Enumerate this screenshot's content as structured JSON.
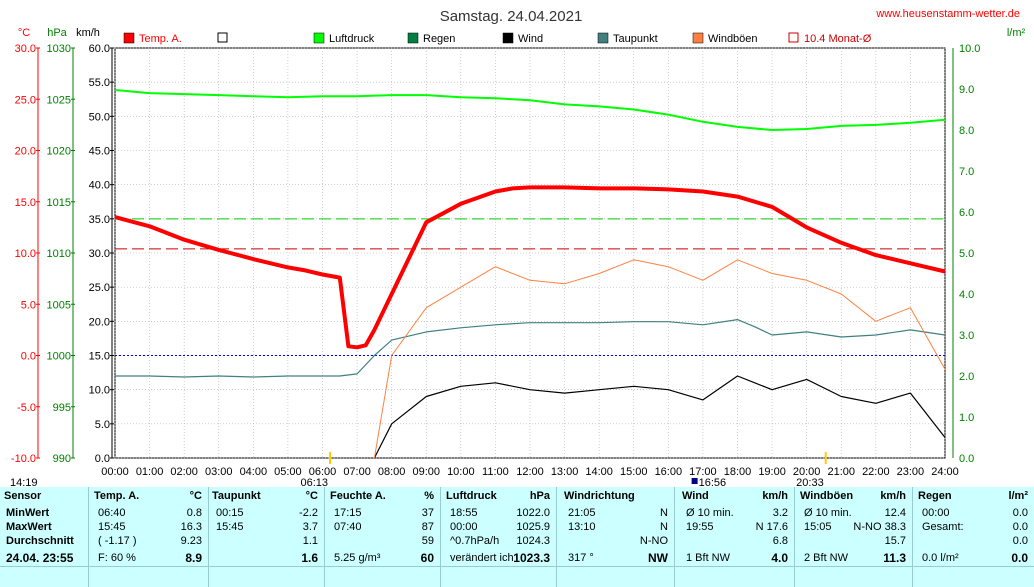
{
  "site": "www.heusenstamm-wetter.de",
  "chart_data": {
    "type": "line",
    "title": "Samstag. 24.04.2021",
    "x": [
      "00:00",
      "01:00",
      "02:00",
      "03:00",
      "04:00",
      "05:00",
      "06:00",
      "07:00",
      "08:00",
      "09:00",
      "10:00",
      "11:00",
      "12:00",
      "13:00",
      "14:00",
      "15:00",
      "16:00",
      "17:00",
      "18:00",
      "19:00",
      "20:00",
      "21:00",
      "22:00",
      "23:00",
      "24:00"
    ],
    "axes": {
      "temp": {
        "unit": "°C",
        "min": -10,
        "max": 30,
        "ticks": [
          "30.0",
          "25.0",
          "20.0",
          "15.0",
          "10.0",
          "5.0",
          "0.0",
          "-5.0",
          "-10.0"
        ],
        "color": "#ff0000"
      },
      "pressure": {
        "unit": "hPa",
        "min": 990,
        "max": 1030,
        "ticks": [
          "1030",
          "1025",
          "1020",
          "1015",
          "1010",
          "1005",
          "1000",
          "995",
          "990"
        ],
        "color": "#008000"
      },
      "wind": {
        "unit": "km/h",
        "min": 0,
        "max": 60,
        "ticks": [
          "60.0",
          "55.0",
          "50.0",
          "45.0",
          "40.0",
          "35.0",
          "30.0",
          "25.0",
          "20.0",
          "15.0",
          "10.0",
          "5.0",
          "0.0"
        ],
        "color": "#000000"
      },
      "rain": {
        "unit": "l/m²",
        "min": 0,
        "max": 10,
        "ticks": [
          "10.0",
          "9.0",
          "8.0",
          "7.0",
          "6.0",
          "5.0",
          "4.0",
          "3.0",
          "2.0",
          "1.0",
          "0.0"
        ],
        "color": "#008000"
      }
    },
    "legend": [
      {
        "name": "Temp. A.",
        "color": "#ff0000",
        "style": "fill"
      },
      {
        "name": "",
        "color": "#ffffff",
        "style": "box"
      },
      {
        "name": "Luftdruck",
        "color": "#00ff00",
        "style": "fill"
      },
      {
        "name": "Regen",
        "color": "#008040",
        "style": "fill"
      },
      {
        "name": "Wind",
        "color": "#000000",
        "style": "fill"
      },
      {
        "name": "Taupunkt",
        "color": "#408080",
        "style": "fill"
      },
      {
        "name": "Windböen",
        "color": "#ff8040",
        "style": "fill"
      },
      {
        "name": "10.4 Monat-Ø",
        "color": "#cc0000",
        "style": "box"
      }
    ],
    "series": [
      {
        "name": "Temp. A.",
        "axis": "temp",
        "color": "#ff0000",
        "points": [
          [
            0,
            13.5
          ],
          [
            1,
            12.6
          ],
          [
            2,
            11.3
          ],
          [
            3,
            10.3
          ],
          [
            4,
            9.4
          ],
          [
            5,
            8.6
          ],
          [
            5.5,
            8.3
          ],
          [
            6,
            7.9
          ],
          [
            6.5,
            7.6
          ],
          [
            6.75,
            0.9
          ],
          [
            7,
            0.8
          ],
          [
            7.25,
            1.0
          ],
          [
            7.5,
            2.5
          ],
          [
            8,
            6.0
          ],
          [
            8.5,
            9.5
          ],
          [
            9,
            13.0
          ],
          [
            10,
            14.8
          ],
          [
            11,
            16.0
          ],
          [
            11.5,
            16.3
          ],
          [
            12,
            16.4
          ],
          [
            13,
            16.4
          ],
          [
            14,
            16.3
          ],
          [
            15,
            16.3
          ],
          [
            16,
            16.2
          ],
          [
            17,
            16.0
          ],
          [
            18,
            15.5
          ],
          [
            19,
            14.5
          ],
          [
            20,
            12.5
          ],
          [
            21,
            11.0
          ],
          [
            22,
            9.8
          ],
          [
            23,
            9.0
          ],
          [
            24,
            8.2
          ]
        ]
      },
      {
        "name": "Taupunkt",
        "axis": "temp",
        "color": "#408080",
        "points": [
          [
            0,
            -2.0
          ],
          [
            1,
            -2.0
          ],
          [
            2,
            -2.1
          ],
          [
            3,
            -2.0
          ],
          [
            4,
            -2.1
          ],
          [
            5,
            -2.0
          ],
          [
            6,
            -2.0
          ],
          [
            6.5,
            -2.0
          ],
          [
            7,
            -1.8
          ],
          [
            7.5,
            0.0
          ],
          [
            8,
            1.5
          ],
          [
            9,
            2.3
          ],
          [
            10,
            2.7
          ],
          [
            11,
            3.0
          ],
          [
            12,
            3.2
          ],
          [
            13,
            3.2
          ],
          [
            14,
            3.2
          ],
          [
            15,
            3.3
          ],
          [
            16,
            3.3
          ],
          [
            17,
            3.0
          ],
          [
            18,
            3.5
          ],
          [
            18.5,
            2.8
          ],
          [
            19,
            2.0
          ],
          [
            20,
            2.3
          ],
          [
            21,
            1.8
          ],
          [
            22,
            2.0
          ],
          [
            23,
            2.5
          ],
          [
            24,
            2.0
          ]
        ]
      },
      {
        "name": "Luftdruck",
        "axis": "pressure",
        "color": "#00ff00",
        "points": [
          [
            0,
            1025.9
          ],
          [
            1,
            1025.6
          ],
          [
            2,
            1025.5
          ],
          [
            3,
            1025.4
          ],
          [
            4,
            1025.3
          ],
          [
            5,
            1025.2
          ],
          [
            6,
            1025.3
          ],
          [
            7,
            1025.3
          ],
          [
            8,
            1025.4
          ],
          [
            9,
            1025.4
          ],
          [
            10,
            1025.2
          ],
          [
            11,
            1025.1
          ],
          [
            12,
            1024.9
          ],
          [
            13,
            1024.5
          ],
          [
            14,
            1024.3
          ],
          [
            15,
            1024.0
          ],
          [
            16,
            1023.5
          ],
          [
            17,
            1022.8
          ],
          [
            18,
            1022.3
          ],
          [
            19,
            1022.0
          ],
          [
            20,
            1022.1
          ],
          [
            21,
            1022.4
          ],
          [
            22,
            1022.5
          ],
          [
            23,
            1022.7
          ],
          [
            24,
            1023.0
          ]
        ]
      },
      {
        "name": "Wind",
        "axis": "wind",
        "color": "#000000",
        "points": [
          [
            7.5,
            0.0
          ],
          [
            8,
            5.0
          ],
          [
            9,
            9.0
          ],
          [
            10,
            10.5
          ],
          [
            11,
            11.0
          ],
          [
            12,
            10.0
          ],
          [
            13,
            9.5
          ],
          [
            14,
            10.0
          ],
          [
            15,
            10.5
          ],
          [
            16,
            10.0
          ],
          [
            17,
            8.5
          ],
          [
            18,
            12.0
          ],
          [
            19,
            10.0
          ],
          [
            20,
            11.5
          ],
          [
            21,
            9.0
          ],
          [
            22,
            8.0
          ],
          [
            23,
            9.5
          ],
          [
            24,
            3.0
          ]
        ]
      },
      {
        "name": "Windböen",
        "axis": "wind",
        "color": "#ff8040",
        "points": [
          [
            7.5,
            0.0
          ],
          [
            8,
            15.0
          ],
          [
            9,
            22.0
          ],
          [
            10,
            25.0
          ],
          [
            11,
            28.0
          ],
          [
            12,
            26.0
          ],
          [
            13,
            25.5
          ],
          [
            14,
            27.0
          ],
          [
            15,
            29.0
          ],
          [
            16,
            28.0
          ],
          [
            17,
            26.0
          ],
          [
            18,
            29.0
          ],
          [
            19,
            27.0
          ],
          [
            20,
            26.0
          ],
          [
            21,
            24.0
          ],
          [
            22,
            20.0
          ],
          [
            23,
            22.0
          ],
          [
            24,
            13.0
          ]
        ]
      }
    ],
    "reference_lines": [
      {
        "name": "10.4 Monat-Ø",
        "axis": "temp",
        "value": 10.4,
        "color": "#cc0000",
        "style": "dash"
      },
      {
        "name": "",
        "axis": "wind",
        "value": 35.0,
        "color": "#00cc00",
        "style": "dash"
      },
      {
        "name": "",
        "axis": "temp",
        "value": 0.0,
        "color": "#0000ff",
        "style": "dot"
      }
    ],
    "markers": {
      "sunrise": "06:13",
      "sunset": "20:33",
      "left_time": "14:19",
      "max_temp_time": "16:56"
    },
    "grid": true
  },
  "panel": {
    "sensor": {
      "title": "Sensor",
      "rows": [
        "MinWert",
        "MaxWert",
        "Durchschnitt",
        "24.04. 23:55"
      ]
    },
    "temp": {
      "title": "Temp. A.",
      "unit": "°C",
      "rows": [
        [
          "06:40",
          "0.8"
        ],
        [
          "15:45",
          "16.3"
        ],
        [
          "( -1.17 )",
          "9.23"
        ],
        [
          "F: 60 %",
          "8.9"
        ]
      ]
    },
    "dew": {
      "title": "Taupunkt",
      "unit": "°C",
      "rows": [
        [
          "00:15",
          "-2.2"
        ],
        [
          "15:45",
          "3.7"
        ],
        [
          "",
          "1.1"
        ],
        [
          "",
          "1.6"
        ]
      ]
    },
    "humidity": {
      "title": "Feuchte A.",
      "unit": "%",
      "rows": [
        [
          "17:15",
          "37"
        ],
        [
          "07:40",
          "87"
        ],
        [
          "",
          "59"
        ],
        [
          "5.25 g/m³",
          "60"
        ]
      ]
    },
    "pressure": {
      "title": "Luftdruck",
      "unit": "hPa",
      "rows": [
        [
          "18:55",
          "1022.0"
        ],
        [
          "00:00",
          "1025.9"
        ],
        [
          "^0.7hPa/h",
          "1024.3"
        ],
        [
          "verändert ich",
          "1023.3"
        ]
      ]
    },
    "direction": {
      "title": "Windrichtung",
      "rows": [
        [
          "21:05",
          "N"
        ],
        [
          "13:10",
          "N"
        ],
        [
          "",
          "N-NO"
        ],
        [
          "317 °",
          "NW"
        ]
      ]
    },
    "wind": {
      "title": "Wind",
      "unit": "km/h",
      "rows": [
        [
          "Ø 10 min.",
          "3.2"
        ],
        [
          "19:55",
          "N 17.6"
        ],
        [
          "",
          "6.8"
        ],
        [
          "1 Bft NW",
          "4.0"
        ]
      ]
    },
    "gusts": {
      "title": "Windböen",
      "unit": "km/h",
      "rows": [
        [
          "Ø 10 min.",
          "12.4"
        ],
        [
          "15:05",
          "N-NO 38.3"
        ],
        [
          "",
          "15.7"
        ],
        [
          "2 Bft NW",
          "11.3"
        ]
      ]
    },
    "rain": {
      "title": "Regen",
      "unit": "l/m²",
      "rows": [
        [
          "00:00",
          "0.0"
        ],
        [
          "Gesamt:",
          "0.0"
        ],
        [
          "",
          "0.0"
        ],
        [
          "0.0 l/m²",
          "0.0"
        ]
      ]
    }
  }
}
